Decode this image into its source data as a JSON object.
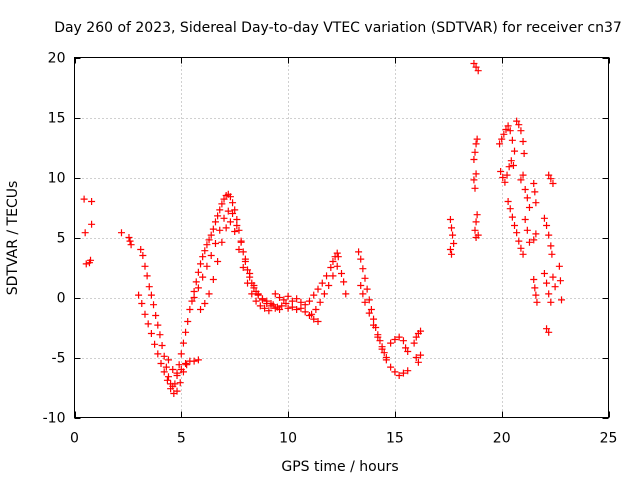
{
  "chart_data": {
    "type": "scatter",
    "title": "Day 260 of 2023, Sidereal Day-to-day VTEC variation (SDTVAR) for receiver cn37",
    "xlabel": "GPS time / hours",
    "ylabel": "SDTVAR / TECUs",
    "xlim": [
      0,
      25
    ],
    "ylim": [
      -10,
      20
    ],
    "xticks": [
      0,
      5,
      10,
      15,
      20,
      25
    ],
    "yticks": [
      -10,
      -5,
      0,
      5,
      10,
      15,
      20
    ],
    "xtick_labels": [
      "0",
      "5",
      "10",
      "15",
      "20",
      "25"
    ],
    "ytick_labels": [
      "-10",
      "-5",
      "0",
      "5",
      "10",
      "15",
      "20"
    ],
    "grid": true,
    "marker": "plus",
    "color": "#ff0000",
    "series": [
      {
        "name": "SDTVAR",
        "points": [
          [
            0.45,
            8.2
          ],
          [
            0.5,
            5.4
          ],
          [
            0.55,
            2.8
          ],
          [
            0.7,
            2.9
          ],
          [
            0.75,
            3.1
          ],
          [
            0.8,
            8.0
          ],
          [
            0.8,
            6.1
          ],
          [
            2.2,
            5.4
          ],
          [
            2.55,
            5.0
          ],
          [
            2.6,
            4.7
          ],
          [
            2.65,
            4.4
          ],
          [
            3.1,
            4.0
          ],
          [
            3.2,
            3.5
          ],
          [
            3.3,
            2.6
          ],
          [
            3.4,
            1.8
          ],
          [
            3.5,
            0.9
          ],
          [
            3.6,
            0.2
          ],
          [
            3.7,
            -0.6
          ],
          [
            3.8,
            -1.5
          ],
          [
            3.9,
            -2.3
          ],
          [
            4.0,
            -3.1
          ],
          [
            4.1,
            -4.0
          ],
          [
            4.2,
            -4.9
          ],
          [
            4.3,
            -5.8
          ],
          [
            4.4,
            -6.6
          ],
          [
            4.5,
            -7.2
          ],
          [
            4.6,
            -7.4
          ],
          [
            4.7,
            -7.2
          ],
          [
            4.8,
            -6.5
          ],
          [
            4.9,
            -5.6
          ],
          [
            5.0,
            -4.7
          ],
          [
            5.1,
            -3.8
          ],
          [
            5.2,
            -2.9
          ],
          [
            5.3,
            -2.0
          ],
          [
            5.4,
            -1.0
          ],
          [
            3.0,
            0.2
          ],
          [
            3.15,
            -0.5
          ],
          [
            3.3,
            -1.4
          ],
          [
            3.45,
            -2.2
          ],
          [
            3.6,
            -3.0
          ],
          [
            3.75,
            -3.9
          ],
          [
            3.9,
            -4.7
          ],
          [
            4.05,
            -5.5
          ],
          [
            4.2,
            -6.2
          ],
          [
            4.35,
            -6.9
          ],
          [
            4.5,
            -7.6
          ],
          [
            4.65,
            -8.0
          ],
          [
            4.8,
            -7.8
          ],
          [
            4.95,
            -7.1
          ],
          [
            5.1,
            -6.2
          ],
          [
            5.25,
            -5.6
          ],
          [
            5.4,
            -5.3
          ],
          [
            5.6,
            -5.3
          ],
          [
            5.8,
            -5.2
          ],
          [
            4.4,
            -5.2
          ],
          [
            4.6,
            -6.0
          ],
          [
            4.8,
            -6.3
          ],
          [
            5.0,
            -6.0
          ],
          [
            5.2,
            -5.5
          ],
          [
            5.5,
            -0.3
          ],
          [
            5.6,
            0.5
          ],
          [
            5.7,
            1.3
          ],
          [
            5.8,
            2.1
          ],
          [
            5.9,
            2.8
          ],
          [
            6.0,
            3.4
          ],
          [
            6.1,
            3.9
          ],
          [
            6.2,
            4.4
          ],
          [
            6.3,
            4.8
          ],
          [
            6.4,
            5.2
          ],
          [
            6.5,
            5.7
          ],
          [
            6.6,
            6.3
          ],
          [
            6.7,
            6.8
          ],
          [
            6.8,
            7.3
          ],
          [
            6.9,
            7.8
          ],
          [
            7.0,
            8.2
          ],
          [
            7.1,
            8.5
          ],
          [
            7.2,
            8.6
          ],
          [
            7.3,
            8.4
          ],
          [
            7.4,
            7.9
          ],
          [
            7.5,
            7.3
          ],
          [
            7.6,
            6.5
          ],
          [
            7.7,
            5.6
          ],
          [
            7.8,
            4.7
          ],
          [
            7.9,
            3.8
          ],
          [
            8.0,
            3.0
          ],
          [
            8.1,
            2.3
          ],
          [
            8.2,
            1.7
          ],
          [
            8.3,
            1.2
          ],
          [
            8.4,
            0.8
          ],
          [
            8.5,
            0.5
          ],
          [
            8.6,
            0.2
          ],
          [
            8.8,
            -0.1
          ],
          [
            9.0,
            -0.3
          ],
          [
            9.2,
            -0.5
          ],
          [
            5.6,
            0.0
          ],
          [
            5.8,
            0.8
          ],
          [
            6.0,
            1.7
          ],
          [
            6.2,
            2.6
          ],
          [
            6.4,
            3.5
          ],
          [
            6.6,
            4.5
          ],
          [
            6.8,
            5.6
          ],
          [
            7.0,
            6.6
          ],
          [
            7.2,
            7.2
          ],
          [
            7.4,
            7.0
          ],
          [
            7.6,
            6.0
          ],
          [
            7.8,
            4.6
          ],
          [
            8.0,
            3.2
          ],
          [
            8.2,
            2.0
          ],
          [
            8.4,
            1.0
          ],
          [
            8.6,
            0.3
          ],
          [
            8.8,
            -0.2
          ],
          [
            9.0,
            -0.5
          ],
          [
            9.2,
            -0.7
          ],
          [
            9.4,
            -0.9
          ],
          [
            9.6,
            -1.0
          ],
          [
            5.9,
            -1.0
          ],
          [
            6.1,
            -0.5
          ],
          [
            6.3,
            0.3
          ],
          [
            6.5,
            1.5
          ],
          [
            6.7,
            3.0
          ],
          [
            6.9,
            4.6
          ],
          [
            7.1,
            5.8
          ],
          [
            7.3,
            6.3
          ],
          [
            7.5,
            5.5
          ],
          [
            7.7,
            4.0
          ],
          [
            7.9,
            2.5
          ],
          [
            8.1,
            1.2
          ],
          [
            8.3,
            0.3
          ],
          [
            8.5,
            -0.3
          ],
          [
            8.7,
            -0.7
          ],
          [
            8.9,
            -0.9
          ],
          [
            9.1,
            -1.1
          ],
          [
            9.3,
            -0.6
          ],
          [
            9.5,
            -0.8
          ],
          [
            9.7,
            -0.7
          ],
          [
            9.9,
            -0.5
          ],
          [
            10.0,
            -0.9
          ],
          [
            10.2,
            -0.8
          ],
          [
            10.4,
            -1.0
          ],
          [
            10.6,
            -0.9
          ],
          [
            10.8,
            -1.2
          ],
          [
            11.0,
            -1.5
          ],
          [
            11.2,
            -1.8
          ],
          [
            11.4,
            -2.0
          ],
          [
            9.4,
            0.3
          ],
          [
            9.6,
            0.0
          ],
          [
            9.8,
            -0.2
          ],
          [
            10.0,
            0.1
          ],
          [
            10.2,
            -0.3
          ],
          [
            10.4,
            -0.1
          ],
          [
            10.6,
            -0.4
          ],
          [
            10.8,
            -0.6
          ],
          [
            11.0,
            -0.3
          ],
          [
            11.2,
            0.2
          ],
          [
            11.4,
            0.7
          ],
          [
            11.6,
            1.2
          ],
          [
            11.8,
            1.8
          ],
          [
            12.0,
            2.5
          ],
          [
            12.1,
            3.0
          ],
          [
            12.2,
            3.4
          ],
          [
            12.3,
            3.7
          ],
          [
            12.35,
            3.4
          ],
          [
            11.1,
            -1.4
          ],
          [
            11.3,
            -1.0
          ],
          [
            11.5,
            -0.4
          ],
          [
            11.7,
            0.3
          ],
          [
            11.9,
            1.0
          ],
          [
            12.1,
            1.8
          ],
          [
            12.3,
            2.6
          ],
          [
            12.5,
            2.0
          ],
          [
            12.6,
            1.3
          ],
          [
            12.7,
            0.3
          ],
          [
            13.3,
            3.8
          ],
          [
            13.4,
            3.2
          ],
          [
            13.5,
            2.4
          ],
          [
            13.6,
            1.6
          ],
          [
            13.7,
            0.7
          ],
          [
            13.8,
            -0.2
          ],
          [
            13.9,
            -1.0
          ],
          [
            14.0,
            -1.8
          ],
          [
            14.1,
            -2.5
          ],
          [
            14.2,
            -3.1
          ],
          [
            14.3,
            -3.6
          ],
          [
            14.4,
            -4.1
          ],
          [
            14.5,
            -4.6
          ],
          [
            14.6,
            -5.0
          ],
          [
            13.4,
            1.0
          ],
          [
            13.5,
            0.3
          ],
          [
            13.6,
            -0.4
          ],
          [
            13.8,
            -1.3
          ],
          [
            14.0,
            -2.3
          ],
          [
            14.2,
            -3.3
          ],
          [
            14.4,
            -4.3
          ],
          [
            14.6,
            -5.2
          ],
          [
            14.8,
            -5.8
          ],
          [
            15.0,
            -6.2
          ],
          [
            15.2,
            -6.5
          ],
          [
            15.4,
            -6.3
          ],
          [
            15.6,
            -6.1
          ],
          [
            14.8,
            -3.8
          ],
          [
            15.0,
            -3.5
          ],
          [
            15.2,
            -3.3
          ],
          [
            15.4,
            -3.6
          ],
          [
            15.5,
            -4.2
          ],
          [
            15.6,
            -4.5
          ],
          [
            15.9,
            -3.8
          ],
          [
            16.0,
            -3.3
          ],
          [
            16.1,
            -3.0
          ],
          [
            16.2,
            -2.8
          ],
          [
            16.0,
            -5.0
          ],
          [
            16.1,
            -5.4
          ],
          [
            16.2,
            -4.8
          ],
          [
            17.6,
            6.5
          ],
          [
            17.65,
            5.8
          ],
          [
            17.7,
            5.2
          ],
          [
            17.75,
            4.5
          ],
          [
            17.6,
            4.0
          ],
          [
            17.65,
            3.6
          ],
          [
            18.7,
            19.5
          ],
          [
            18.8,
            19.2
          ],
          [
            18.9,
            18.9
          ],
          [
            18.7,
            11.5
          ],
          [
            18.75,
            12.1
          ],
          [
            18.8,
            12.8
          ],
          [
            18.85,
            13.2
          ],
          [
            18.7,
            9.8
          ],
          [
            18.8,
            10.3
          ],
          [
            18.75,
            9.1
          ],
          [
            18.85,
            6.9
          ],
          [
            18.8,
            6.3
          ],
          [
            18.75,
            5.6
          ],
          [
            18.9,
            5.2
          ],
          [
            18.8,
            5.0
          ],
          [
            19.9,
            12.8
          ],
          [
            20.0,
            13.2
          ],
          [
            20.1,
            13.6
          ],
          [
            20.2,
            14.0
          ],
          [
            20.3,
            14.3
          ],
          [
            20.4,
            13.9
          ],
          [
            20.5,
            13.1
          ],
          [
            20.6,
            12.2
          ],
          [
            19.95,
            10.5
          ],
          [
            20.05,
            10.0
          ],
          [
            20.15,
            9.6
          ],
          [
            20.25,
            10.2
          ],
          [
            20.35,
            10.9
          ],
          [
            20.45,
            11.4
          ],
          [
            20.55,
            11.0
          ],
          [
            20.3,
            8.0
          ],
          [
            20.4,
            7.4
          ],
          [
            20.5,
            6.7
          ],
          [
            20.6,
            6.0
          ],
          [
            20.7,
            5.4
          ],
          [
            20.8,
            4.7
          ],
          [
            20.9,
            4.1
          ],
          [
            21.0,
            3.6
          ],
          [
            20.7,
            14.7
          ],
          [
            20.8,
            14.4
          ],
          [
            20.9,
            13.9
          ],
          [
            21.0,
            13.0
          ],
          [
            21.05,
            12.0
          ],
          [
            21.0,
            10.2
          ],
          [
            20.9,
            9.8
          ],
          [
            21.1,
            9.0
          ],
          [
            21.2,
            8.3
          ],
          [
            21.3,
            7.5
          ],
          [
            21.1,
            6.5
          ],
          [
            21.2,
            5.6
          ],
          [
            21.3,
            4.6
          ],
          [
            21.5,
            9.5
          ],
          [
            21.55,
            8.8
          ],
          [
            21.6,
            7.9
          ],
          [
            21.5,
            4.8
          ],
          [
            21.6,
            5.3
          ],
          [
            21.5,
            1.5
          ],
          [
            21.55,
            0.8
          ],
          [
            21.6,
            0.2
          ],
          [
            21.65,
            -0.4
          ],
          [
            22.0,
            6.6
          ],
          [
            22.1,
            6.0
          ],
          [
            22.2,
            5.2
          ],
          [
            22.3,
            4.3
          ],
          [
            22.35,
            3.6
          ],
          [
            22.2,
            10.2
          ],
          [
            22.3,
            9.9
          ],
          [
            22.4,
            9.5
          ],
          [
            22.0,
            2.0
          ],
          [
            22.1,
            1.2
          ],
          [
            22.2,
            0.3
          ],
          [
            22.3,
            -0.4
          ],
          [
            22.4,
            1.7
          ],
          [
            22.5,
            0.9
          ],
          [
            22.1,
            -2.6
          ],
          [
            22.2,
            -2.9
          ],
          [
            22.7,
            2.6
          ],
          [
            22.75,
            1.4
          ],
          [
            22.8,
            -0.2
          ]
        ]
      }
    ]
  }
}
